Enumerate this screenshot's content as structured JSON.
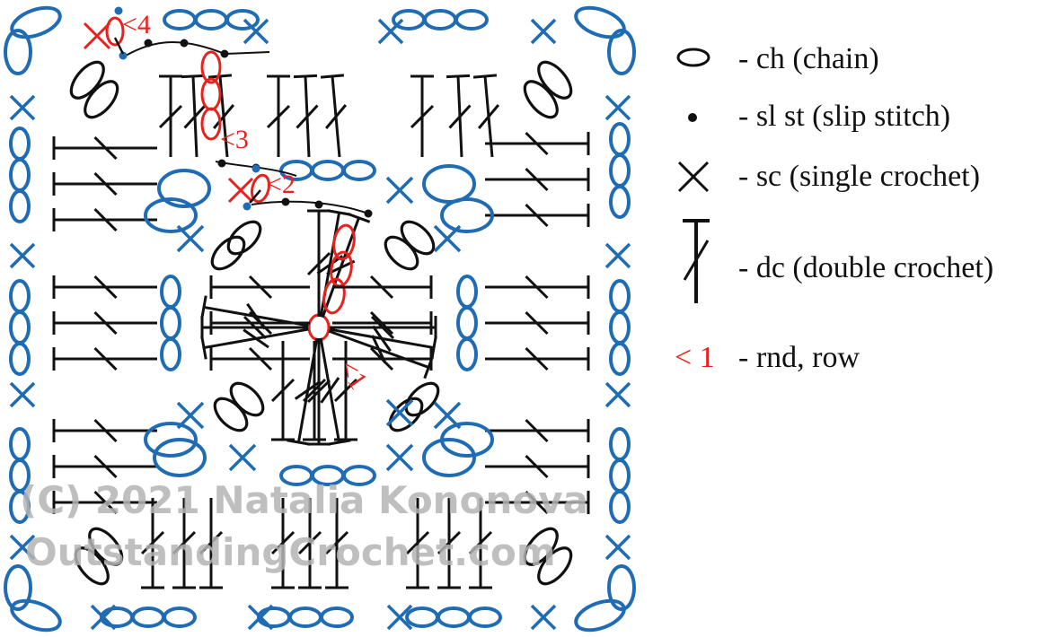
{
  "colors": {
    "ink": "#111111",
    "outer_round": "#1f6cb5",
    "round_marker": "#e8211c",
    "watermark": "#b4b4b4"
  },
  "legend": [
    {
      "icon": "chain-ellipse-icon",
      "label": "- ch (chain)"
    },
    {
      "icon": "slip-stitch-dot-icon",
      "label": "- sl st (slip stitch)"
    },
    {
      "icon": "single-crochet-x-icon",
      "label": "- sc (single crochet)"
    },
    {
      "icon": "double-crochet-icon",
      "label": "- dc (double crochet)"
    },
    {
      "icon": "round-marker",
      "marker": "< 1",
      "label": "- rnd, row"
    }
  ],
  "round_labels": [
    "<1",
    "<2",
    "<3",
    "<4"
  ],
  "watermark": {
    "line1": "(C) 2021 Natalia Kononova",
    "line2": "OutstandingCrochet.com"
  }
}
